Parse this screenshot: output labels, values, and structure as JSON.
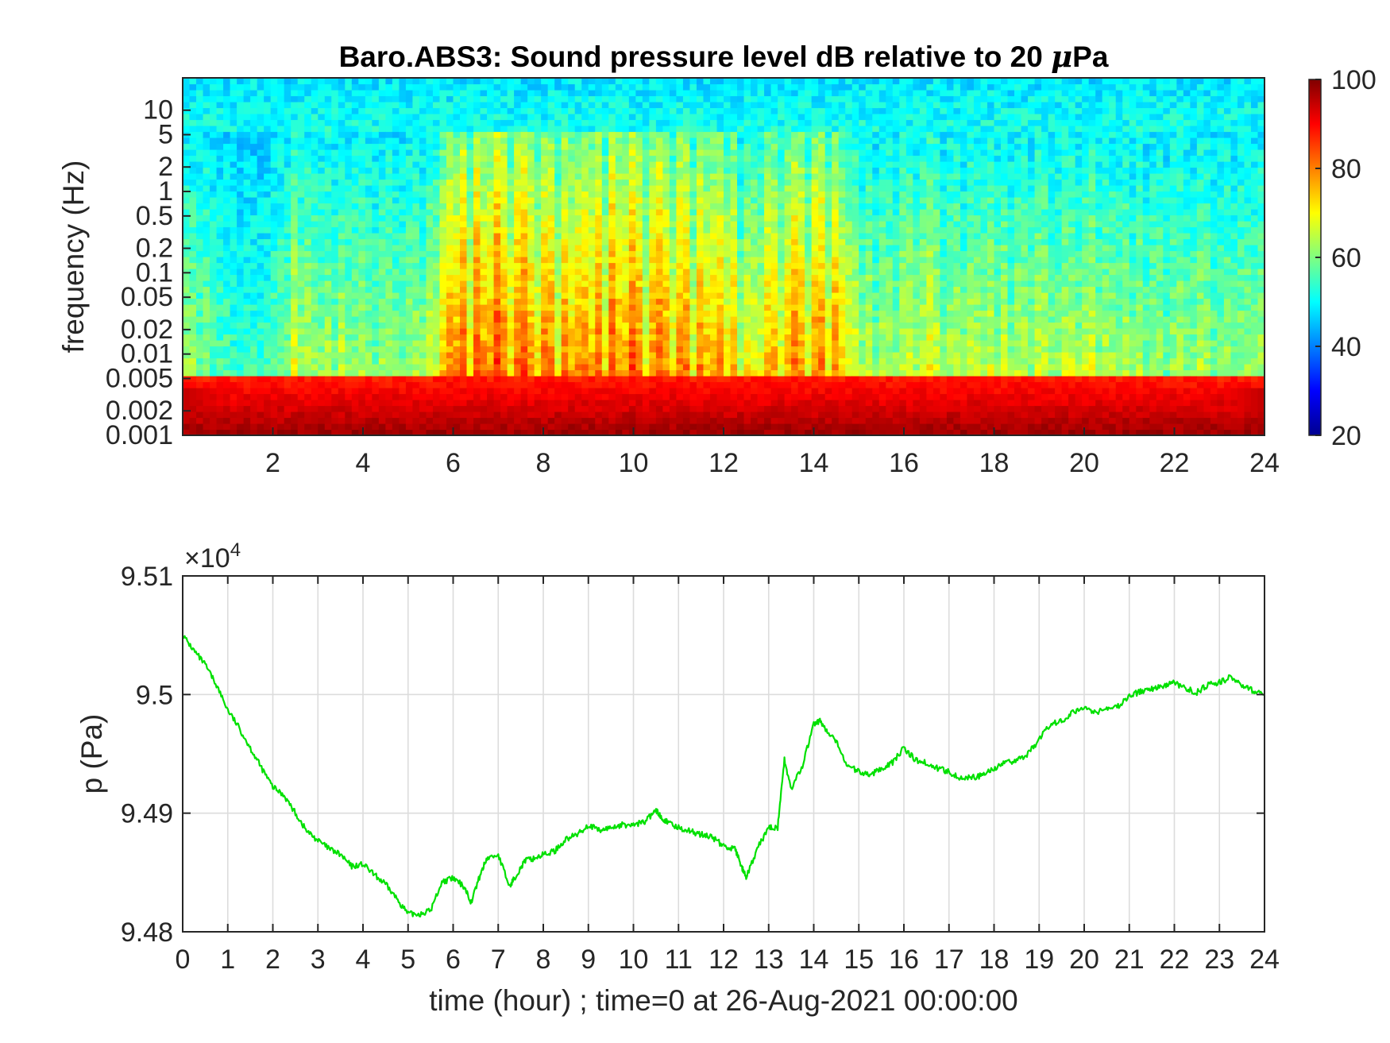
{
  "chart_data": [
    {
      "type": "heatmap",
      "title": "Baro.ABS3: Sound pressure level dB relative to 20 ",
      "title_symbol": "μ",
      "title_unit": "Pa",
      "xlabel": "",
      "ylabel": "frequency (Hz)",
      "x_scale": "linear",
      "y_scale": "log",
      "xlim": [
        0,
        24
      ],
      "ylim": [
        0.001,
        25
      ],
      "x_ticks": [
        "2",
        "4",
        "6",
        "8",
        "10",
        "12",
        "14",
        "16",
        "18",
        "20",
        "22",
        "24"
      ],
      "x_tick_values": [
        2,
        4,
        6,
        8,
        10,
        12,
        14,
        16,
        18,
        20,
        22,
        24
      ],
      "y_ticks": [
        "0.001",
        "0.002",
        "0.005",
        "0.01",
        "0.02",
        "0.05",
        "0.1",
        "0.2",
        "0.5",
        "1",
        "2",
        "5",
        "10"
      ],
      "y_tick_values": [
        0.001,
        0.002,
        0.005,
        0.01,
        0.02,
        0.05,
        0.1,
        0.2,
        0.5,
        1,
        2,
        5,
        10
      ],
      "colormap": "jet",
      "colorbar": {
        "range": [
          20,
          100
        ],
        "ticks": [
          "20",
          "40",
          "60",
          "80",
          "100"
        ],
        "tick_values": [
          20,
          40,
          60,
          80,
          100
        ]
      },
      "activity_profile": {
        "description_hours": [
          0,
          0.5,
          1,
          1.5,
          2,
          2.5,
          3,
          3.5,
          4,
          4.5,
          5,
          5.5,
          6,
          6.5,
          7,
          7.5,
          8,
          8.5,
          9,
          9.5,
          10,
          10.5,
          11,
          11.5,
          12,
          12.5,
          13,
          13.5,
          14,
          14.5,
          15,
          15.5,
          16,
          16.5,
          17,
          17.5,
          18,
          18.5,
          19,
          19.5,
          20,
          20.5,
          21,
          21.5,
          22,
          22.5,
          23,
          23.5,
          24
        ],
        "level": [
          0.45,
          0.35,
          0.2,
          0.15,
          0.25,
          0.55,
          0.4,
          0.45,
          0.4,
          0.4,
          0.4,
          0.5,
          0.95,
          0.95,
          1.0,
          0.95,
          0.9,
          0.85,
          0.9,
          0.95,
          0.95,
          0.9,
          0.9,
          0.85,
          0.85,
          0.6,
          0.75,
          0.85,
          0.9,
          0.85,
          0.5,
          0.45,
          0.5,
          0.6,
          0.45,
          0.5,
          0.5,
          0.45,
          0.5,
          0.45,
          0.55,
          0.45,
          0.45,
          0.4,
          0.4,
          0.45,
          0.35,
          0.4,
          0.4
        ]
      }
    },
    {
      "type": "line",
      "title": "",
      "xlabel": "time (hour) ; time=0 at 26-Aug-2021 00:00:00",
      "ylabel": "p (Pa)",
      "exponent_label_base": "×10",
      "exponent_label_power": "4",
      "xlim": [
        0,
        24
      ],
      "ylim": [
        94800,
        95100
      ],
      "grid": true,
      "line_color": "#00e000",
      "x_ticks": [
        "0",
        "1",
        "2",
        "3",
        "4",
        "5",
        "6",
        "7",
        "8",
        "9",
        "10",
        "11",
        "12",
        "13",
        "14",
        "15",
        "16",
        "17",
        "18",
        "19",
        "20",
        "21",
        "22",
        "23",
        "24"
      ],
      "y_ticks": [
        "9.48",
        "9.49",
        "9.5",
        "9.51"
      ],
      "y_tick_values": [
        94800,
        94900,
        95000,
        95100
      ],
      "series": [
        {
          "x": [
            0,
            0.25,
            0.5,
            0.75,
            1,
            1.25,
            1.5,
            1.75,
            2,
            2.25,
            2.5,
            2.75,
            3,
            3.25,
            3.5,
            3.75,
            4,
            4.25,
            4.5,
            4.75,
            5,
            5.25,
            5.5,
            5.75,
            6,
            6.25,
            6.4,
            6.6,
            6.75,
            7,
            7.25,
            7.4,
            7.6,
            7.8,
            8,
            8.25,
            8.5,
            8.75,
            9,
            9.25,
            9.5,
            9.75,
            10,
            10.25,
            10.5,
            10.6,
            10.75,
            11,
            11.25,
            11.5,
            11.75,
            12,
            12.25,
            12.4,
            12.5,
            12.75,
            13,
            13.2,
            13.35,
            13.5,
            13.75,
            14,
            14.15,
            14.3,
            14.5,
            14.75,
            15,
            15.25,
            15.5,
            15.75,
            16,
            16.25,
            16.5,
            16.75,
            17,
            17.25,
            17.5,
            17.75,
            18,
            18.25,
            18.5,
            18.75,
            19,
            19.25,
            19.5,
            19.75,
            20,
            20.25,
            20.5,
            20.75,
            21,
            21.25,
            21.5,
            21.75,
            22,
            22.25,
            22.5,
            22.75,
            23,
            23.25,
            23.5,
            23.75,
            24
          ],
          "y": [
            95050,
            95037,
            95025,
            95008,
            94987,
            94972,
            94955,
            94938,
            94922,
            94915,
            94900,
            94885,
            94877,
            94870,
            94865,
            94855,
            94857,
            94848,
            94840,
            94828,
            94815,
            94815,
            94818,
            94842,
            94845,
            94838,
            94825,
            94848,
            94862,
            94865,
            94838,
            94848,
            94860,
            94862,
            94865,
            94868,
            94878,
            94882,
            94890,
            94885,
            94888,
            94890,
            94890,
            94893,
            94902,
            94898,
            94892,
            94888,
            94885,
            94882,
            94880,
            94872,
            94870,
            94855,
            94845,
            94870,
            94888,
            94888,
            94945,
            94920,
            94940,
            94975,
            94978,
            94968,
            94960,
            94940,
            94935,
            94932,
            94938,
            94943,
            94955,
            94945,
            94942,
            94938,
            94935,
            94930,
            94930,
            94932,
            94938,
            94942,
            94945,
            94950,
            94962,
            94975,
            94978,
            94985,
            94990,
            94985,
            94988,
            94990,
            94998,
            95003,
            95005,
            95007,
            95010,
            95005,
            95002,
            95008,
            95010,
            95015,
            95008,
            95003,
            95000
          ]
        }
      ]
    }
  ]
}
